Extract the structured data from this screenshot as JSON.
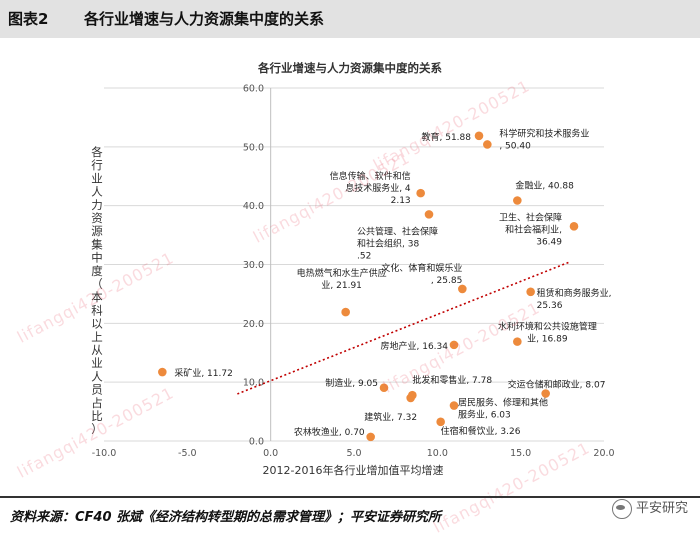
{
  "header": {
    "label": "图表2",
    "title": "各行业增速与人力资源集中度的关系"
  },
  "footer": {
    "source": "资料来源：CF40 张斌《经济结构转型期的总需求管理》；平安证券研究所",
    "brand": "平安研究"
  },
  "watermarks": [
    "lifangqi420-200521",
    "lifangqi420-200521",
    "lifangqi420-200521",
    "lifangqi420-200521",
    "lifangqi420-200521",
    "lifangqi420-200521"
  ],
  "colors": {
    "marker": "#ed8a3c",
    "trendline": "#c00000",
    "grid": "#d9d9d9",
    "axis_text": "#555555"
  },
  "chart_data": {
    "type": "scatter",
    "title": "各行业增速与人力资源集中度的关系",
    "xlabel": "2012-2016年各行业增加值平均增速",
    "ylabel": "各行业人力资源集中度（本科以上从业人员占比）",
    "xlim": [
      -10.0,
      20.0
    ],
    "ylim": [
      0.0,
      60.0
    ],
    "xticks": [
      "-10.0",
      "-5.0",
      "0.0",
      "5.0",
      "10.0",
      "15.0",
      "20.0"
    ],
    "yticks": [
      "0.0",
      "10.0",
      "20.0",
      "30.0",
      "40.0",
      "50.0",
      "60.0"
    ],
    "grid": "horizontal",
    "trendline": {
      "style": "dotted",
      "x_start": -2.0,
      "y_start": 8.0,
      "x_end": 18.0,
      "y_end": 30.5
    },
    "points": [
      {
        "label": "采矿业, 11.72",
        "x": -6.5,
        "y": 11.72
      },
      {
        "label": "教育, 51.88",
        "x": 12.5,
        "y": 51.88
      },
      {
        "label": "科学研究和技术服务业, 50.40",
        "x": 13.0,
        "y": 50.4
      },
      {
        "label": "信息传输、软件和信息技术服务业, 42.13",
        "x": 9.0,
        "y": 42.13
      },
      {
        "label": "金融业, 40.88",
        "x": 14.8,
        "y": 40.88
      },
      {
        "label": "公共管理、社会保障和社会组织, 38.52",
        "x": 9.5,
        "y": 38.52
      },
      {
        "label": "卫生、社会保障和社会福利业, 36.49",
        "x": 18.2,
        "y": 36.49
      },
      {
        "label": "文化、体育和娱乐业, 25.85",
        "x": 11.5,
        "y": 25.85
      },
      {
        "label": "租赁和商务服务业, 25.36",
        "x": 15.6,
        "y": 25.36
      },
      {
        "label": "电热燃气和水生产供应业, 21.91",
        "x": 4.5,
        "y": 21.91
      },
      {
        "label": "水利环境和公共设施管理业, 16.89",
        "x": 14.8,
        "y": 16.89
      },
      {
        "label": "房地产业, 16.34",
        "x": 11.0,
        "y": 16.34
      },
      {
        "label": "制造业, 9.05",
        "x": 6.8,
        "y": 9.05
      },
      {
        "label": "批发和零售业, 7.78",
        "x": 8.5,
        "y": 7.78
      },
      {
        "label": "交运仓储和邮政业, 8.07",
        "x": 16.5,
        "y": 8.07
      },
      {
        "label": "建筑业, 7.32",
        "x": 8.4,
        "y": 7.32
      },
      {
        "label": "居民服务、修理和其他服务业, 6.03",
        "x": 11.0,
        "y": 6.03
      },
      {
        "label": "住宿和餐饮业, 3.26",
        "x": 10.2,
        "y": 3.26
      },
      {
        "label": "农林牧渔业, 0.70",
        "x": 6.0,
        "y": 0.7
      }
    ]
  }
}
